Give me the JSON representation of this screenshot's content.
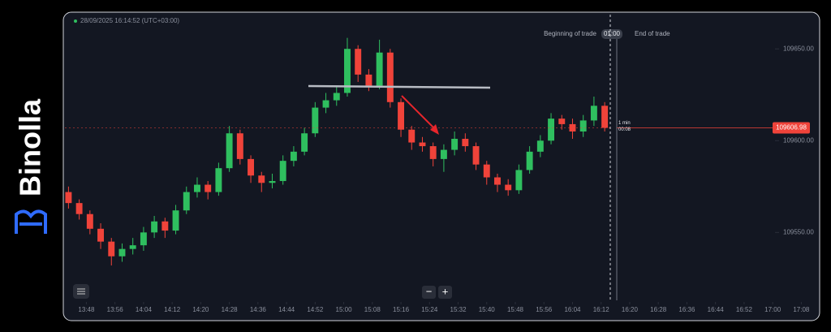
{
  "brand": "Binolla",
  "header": {
    "timestamp": "28/09/2025 16:14:52 (UTC+03:00)",
    "trade_begin": "Beginning of trade",
    "timer": "01:00",
    "trade_end": "End of trade"
  },
  "controls": {
    "zoom_out": "−",
    "zoom_in": "+"
  },
  "chart_data": {
    "type": "candlestick",
    "timeframe": "1 min",
    "countdown": "00:08",
    "current_price": 109606.98,
    "up_color": "#2fbf5f",
    "down_color": "#f0433a",
    "x": [
      "13:43",
      "13:46",
      "13:49",
      "13:52",
      "13:55",
      "13:58",
      "14:01",
      "14:04",
      "14:07",
      "14:10",
      "14:13",
      "14:16",
      "14:19",
      "14:22",
      "14:25",
      "14:28",
      "14:31",
      "14:34",
      "14:37",
      "14:40",
      "14:43",
      "14:46",
      "14:49",
      "14:52",
      "14:55",
      "14:58",
      "15:01",
      "15:04",
      "15:07",
      "15:10",
      "15:13",
      "15:16",
      "15:19",
      "15:22",
      "15:25",
      "15:28",
      "15:31",
      "15:34",
      "15:37",
      "15:40",
      "15:43",
      "15:46",
      "15:49",
      "15:52",
      "15:55",
      "15:58",
      "16:01",
      "16:04",
      "16:07",
      "16:10",
      "16:13"
    ],
    "open": [
      109572,
      109566,
      109560,
      109552,
      109545,
      109537,
      109541,
      109543,
      109550,
      109556,
      109551,
      109562,
      109572,
      109576,
      109572,
      109585,
      109604,
      109590,
      109581,
      109577,
      109578,
      109589,
      109594,
      109604,
      109618,
      109622,
      109626,
      109650,
      109636,
      109630,
      109648,
      109621,
      109606,
      109599,
      109597,
      109590,
      109595,
      109601,
      109597,
      109587,
      109580,
      109576,
      109573,
      109584,
      109594,
      109600,
      109612,
      109609,
      109605,
      109611,
      109619
    ],
    "high": [
      109575,
      109568,
      109562,
      109555,
      109547,
      109544,
      109547,
      109553,
      109559,
      109558,
      109565,
      109575,
      109580,
      109578,
      109588,
      109608,
      109606,
      109592,
      109583,
      109582,
      109592,
      109597,
      109607,
      109621,
      109626,
      109630,
      109656,
      109652,
      109639,
      109655,
      109650,
      109623,
      109608,
      109602,
      109599,
      109598,
      109605,
      109604,
      109599,
      109589,
      109582,
      109579,
      109587,
      109597,
      109603,
      109615,
      109614,
      109612,
      109614,
      109624,
      109621
    ],
    "low": [
      109563,
      109557,
      109549,
      109541,
      109532,
      109534,
      109538,
      109540,
      109547,
      109547,
      109549,
      109560,
      109569,
      109568,
      109570,
      109583,
      109587,
      109577,
      109572,
      109574,
      109576,
      109586,
      109592,
      109602,
      109615,
      109619,
      109624,
      109632,
      109627,
      109628,
      109618,
      109602,
      109595,
      109594,
      109586,
      109583,
      109592,
      109594,
      109584,
      109576,
      109572,
      109570,
      109571,
      109582,
      109591,
      109598,
      109606,
      109601,
      109602,
      109608,
      109605
    ],
    "close": [
      109566,
      109560,
      109552,
      109545,
      109537,
      109541,
      109543,
      109550,
      109556,
      109551,
      109562,
      109572,
      109576,
      109572,
      109585,
      109604,
      109590,
      109581,
      109577,
      109578,
      109589,
      109594,
      109604,
      109618,
      109622,
      109626,
      109650,
      109636,
      109630,
      109648,
      109621,
      109606,
      109599,
      109597,
      109590,
      109595,
      109601,
      109597,
      109587,
      109580,
      109576,
      109573,
      109584,
      109594,
      109600,
      109612,
      109609,
      109605,
      109611,
      109619,
      109606.98
    ],
    "xlim": [
      "13:42",
      "17:12"
    ],
    "xticks": [
      "13:48",
      "13:56",
      "14:04",
      "14:12",
      "14:20",
      "14:28",
      "14:36",
      "14:44",
      "14:52",
      "15:00",
      "15:08",
      "15:16",
      "15:24",
      "15:32",
      "15:40",
      "15:48",
      "15:56",
      "16:04",
      "16:12",
      "16:20",
      "16:28",
      "16:36",
      "16:44",
      "16:52",
      "17:00",
      "17:08"
    ],
    "ylim": [
      109513,
      109670
    ],
    "yticks": [
      {
        "value": 109650,
        "label": "109650.00"
      },
      {
        "value": 109600,
        "label": "109600.00"
      },
      {
        "value": 109550,
        "label": "109550.00"
      }
    ]
  }
}
